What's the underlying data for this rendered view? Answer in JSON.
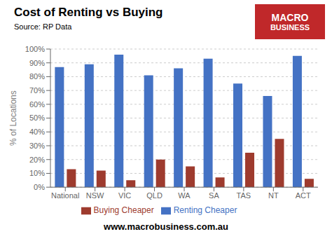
{
  "chart_data": {
    "type": "bar",
    "title": "Cost of Renting vs Buying",
    "annotations": [
      "Source: RP Data",
      "www.macrobusiness.com.au",
      "MACRO",
      "BUSINESS"
    ],
    "ylabel": "% of Locations",
    "categories": [
      "National",
      "NSW",
      "VIC",
      "QLD",
      "WA",
      "SA",
      "TAS",
      "NT",
      "ACT"
    ],
    "series": [
      {
        "name": "Renting Cheaper",
        "color": "#4472C4",
        "values": [
          0.87,
          0.89,
          0.96,
          0.81,
          0.86,
          0.93,
          0.75,
          0.66,
          0.95
        ]
      },
      {
        "name": "Buying Cheaper",
        "color": "#9E3B2E",
        "values": [
          0.13,
          0.12,
          0.05,
          0.2,
          0.15,
          0.07,
          0.25,
          0.35,
          0.06
        ]
      }
    ],
    "ylim": [
      0,
      1.0
    ],
    "yticks": [
      {
        "value": 0,
        "label": "0%"
      },
      {
        "value": 0.1,
        "label": "10%"
      },
      {
        "value": 0.2,
        "label": "20%"
      },
      {
        "value": 0.3,
        "label": "30%"
      },
      {
        "value": 0.4,
        "label": "40%"
      },
      {
        "value": 0.5,
        "label": "50%"
      },
      {
        "value": 0.6,
        "label": "60%"
      },
      {
        "value": 0.7,
        "label": "70%"
      },
      {
        "value": 0.8,
        "label": "80%"
      },
      {
        "value": 0.9,
        "label": "90%"
      },
      {
        "value": 1.0,
        "label": "100%"
      }
    ],
    "grid": true,
    "legend": "bottom"
  }
}
